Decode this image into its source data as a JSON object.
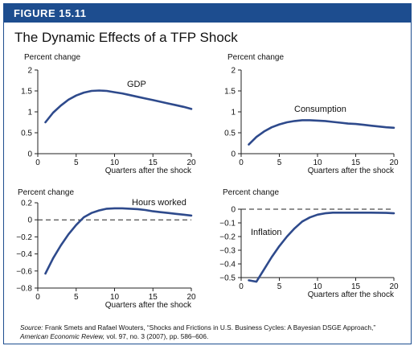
{
  "figure": {
    "label": "FIGURE 15.11",
    "title": "The Dynamic Effects of a TFP Shock",
    "source_label": "Source:",
    "source_part1": "Frank Smets and Rafael Wouters, “Shocks and Frictions in U.S. Business Cycles: A Bayesian DSGE Approach,”",
    "source_journal": "American Economic Review,",
    "source_part2": "vol. 97, no. 3 (2007), pp. 586–606."
  },
  "colors": {
    "accent": "#1d4d8f",
    "series": "#2e4a8c"
  },
  "chart_data": [
    {
      "type": "line",
      "ylabel": "Percent change",
      "xlabel": "Quarters after the shock",
      "xlim": [
        0,
        20
      ],
      "ylim": [
        0,
        2
      ],
      "xticks": [
        0,
        5,
        10,
        15,
        20
      ],
      "yticks": [
        0,
        0.5,
        1,
        1.5,
        2
      ],
      "ytick_labels": [
        "0",
        "0.5",
        "1",
        "1.5",
        "2"
      ],
      "zero_line": false,
      "series": [
        {
          "name": "GDP",
          "x": [
            1,
            2,
            3,
            4,
            5,
            6,
            7,
            8,
            9,
            10,
            11,
            12,
            13,
            14,
            15,
            16,
            17,
            18,
            19,
            20
          ],
          "y": [
            0.75,
            0.98,
            1.15,
            1.29,
            1.39,
            1.46,
            1.5,
            1.51,
            1.5,
            1.47,
            1.44,
            1.4,
            1.36,
            1.32,
            1.28,
            1.24,
            1.2,
            1.16,
            1.12,
            1.07
          ]
        }
      ]
    },
    {
      "type": "line",
      "ylabel": "Percent change",
      "xlabel": "Quarters after the shock",
      "xlim": [
        0,
        20
      ],
      "ylim": [
        0,
        2
      ],
      "xticks": [
        0,
        5,
        10,
        15,
        20
      ],
      "yticks": [
        0,
        0.5,
        1,
        1.5,
        2
      ],
      "ytick_labels": [
        "0",
        "0.5",
        "1",
        "1.5",
        "2"
      ],
      "zero_line": false,
      "series": [
        {
          "name": "Consumption",
          "x": [
            1,
            2,
            3,
            4,
            5,
            6,
            7,
            8,
            9,
            10,
            11,
            12,
            13,
            14,
            15,
            16,
            17,
            18,
            19,
            20
          ],
          "y": [
            0.22,
            0.4,
            0.53,
            0.63,
            0.7,
            0.75,
            0.78,
            0.8,
            0.8,
            0.79,
            0.78,
            0.76,
            0.74,
            0.72,
            0.71,
            0.69,
            0.67,
            0.65,
            0.63,
            0.62
          ]
        }
      ]
    },
    {
      "type": "line",
      "ylabel": "Percent change",
      "xlabel": "Quarters after the shock",
      "xlim": [
        0,
        20
      ],
      "ylim": [
        -0.8,
        0.2
      ],
      "xticks": [
        0,
        5,
        10,
        15,
        20
      ],
      "yticks": [
        -0.8,
        -0.6,
        -0.4,
        -0.2,
        0,
        0.2
      ],
      "ytick_labels": [
        "−0.8",
        "−0.6",
        "−0.4",
        "−0.2",
        "0",
        "0.2"
      ],
      "zero_line": true,
      "series": [
        {
          "name": "Hours worked",
          "x": [
            1,
            2,
            3,
            4,
            5,
            6,
            7,
            8,
            9,
            10,
            11,
            12,
            13,
            14,
            15,
            16,
            17,
            18,
            19,
            20
          ],
          "y": [
            -0.63,
            -0.45,
            -0.3,
            -0.17,
            -0.06,
            0.03,
            0.08,
            0.11,
            0.13,
            0.135,
            0.135,
            0.13,
            0.125,
            0.115,
            0.1,
            0.09,
            0.08,
            0.07,
            0.06,
            0.05
          ]
        }
      ]
    },
    {
      "type": "line",
      "ylabel": "Percent change",
      "xlabel": "Quarters after the shock",
      "xlim": [
        0,
        20
      ],
      "ylim": [
        -0.55,
        0.05
      ],
      "xticks": [
        0,
        5,
        10,
        15,
        20
      ],
      "yticks": [
        -0.5,
        -0.4,
        -0.3,
        -0.2,
        -0.1,
        0
      ],
      "ytick_labels": [
        "−0.5",
        "−0.4",
        "−0.3",
        "−0.2",
        "−0.1",
        "0"
      ],
      "zero_line": true,
      "series": [
        {
          "name": "Inflation",
          "x": [
            1,
            2,
            3,
            4,
            5,
            6,
            7,
            8,
            9,
            10,
            11,
            12,
            13,
            14,
            15,
            16,
            17,
            18,
            19,
            20
          ],
          "y": [
            -0.52,
            -0.53,
            -0.44,
            -0.35,
            -0.27,
            -0.2,
            -0.14,
            -0.09,
            -0.06,
            -0.04,
            -0.03,
            -0.025,
            -0.025,
            -0.025,
            -0.025,
            -0.025,
            -0.025,
            -0.026,
            -0.027,
            -0.03
          ]
        }
      ]
    }
  ]
}
